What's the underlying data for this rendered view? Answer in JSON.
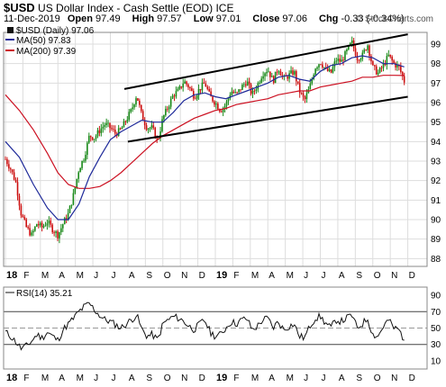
{
  "header": {
    "symbol": "$USD",
    "name": "US Dollar Index - Cash Settle (EOD)",
    "exchange": "ICE",
    "date": "11-Dec-2019",
    "open_label": "Open",
    "open": "97.49",
    "high_label": "High",
    "high": "97.57",
    "low_label": "Low",
    "low": "97.01",
    "close_label": "Close",
    "close": "97.06",
    "chg_label": "Chg",
    "chg": "-0.33 (-0.34%)",
    "copyright": "© StockCharts.com"
  },
  "legend": {
    "price": "$USD (Daily) 97.06",
    "ma50": "MA(50) 97.83",
    "ma200": "MA(200) 97.39",
    "rsi": "RSI(14) 35.21"
  },
  "colors": {
    "up": "#1a8a1a",
    "down": "#cc1111",
    "ma50": "#1f2a9a",
    "ma200": "#cc1122",
    "channel": "#000000",
    "grid": "#dddddd"
  },
  "chart_data": [
    {
      "type": "candlestick",
      "title": "$USD (Daily) 97.06",
      "ylim": [
        87.6,
        99.6
      ],
      "y_ticks": [
        88,
        89,
        90,
        91,
        92,
        93,
        94,
        95,
        96,
        97,
        98,
        99
      ],
      "x_ticks": [
        "18",
        "F",
        "M",
        "A",
        "M",
        "J",
        "J",
        "A",
        "S",
        "O",
        "N",
        "D",
        "19",
        "F",
        "M",
        "A",
        "M",
        "J",
        "J",
        "A",
        "S",
        "O",
        "N",
        "D"
      ],
      "close_path": [
        [
          0,
          93.1
        ],
        [
          0.3,
          92.6
        ],
        [
          0.6,
          91.9
        ],
        [
          0.9,
          90.3
        ],
        [
          1.2,
          89.6
        ],
        [
          1.5,
          89.2
        ],
        [
          1.8,
          89.8
        ],
        [
          2.1,
          89.6
        ],
        [
          2.4,
          89.9
        ],
        [
          2.7,
          89.5
        ],
        [
          3.0,
          89.2
        ],
        [
          3.3,
          89.8
        ],
        [
          3.6,
          90.3
        ],
        [
          3.9,
          91.3
        ],
        [
          4.2,
          92.6
        ],
        [
          4.5,
          93.2
        ],
        [
          4.8,
          94.3
        ],
        [
          5.1,
          94.2
        ],
        [
          5.4,
          94.6
        ],
        [
          5.7,
          94.9
        ],
        [
          6.0,
          94.7
        ],
        [
          6.3,
          94.4
        ],
        [
          6.6,
          94.6
        ],
        [
          6.9,
          95.1
        ],
        [
          7.2,
          95.6
        ],
        [
          7.5,
          96.4
        ],
        [
          7.8,
          95.3
        ],
        [
          8.1,
          94.7
        ],
        [
          8.4,
          94.7
        ],
        [
          8.7,
          94.0
        ],
        [
          9.0,
          95.2
        ],
        [
          9.3,
          95.8
        ],
        [
          9.6,
          96.4
        ],
        [
          9.9,
          96.6
        ],
        [
          10.2,
          97.1
        ],
        [
          10.5,
          96.8
        ],
        [
          10.8,
          96.3
        ],
        [
          11.1,
          96.7
        ],
        [
          11.4,
          97.0
        ],
        [
          11.7,
          96.3
        ],
        [
          12.0,
          96.0
        ],
        [
          12.3,
          95.6
        ],
        [
          12.6,
          95.9
        ],
        [
          12.9,
          96.6
        ],
        [
          13.2,
          96.4
        ],
        [
          13.5,
          96.8
        ],
        [
          13.8,
          97.1
        ],
        [
          14.1,
          96.4
        ],
        [
          14.4,
          96.9
        ],
        [
          14.7,
          97.5
        ],
        [
          15.0,
          97.7
        ],
        [
          15.3,
          97.1
        ],
        [
          15.6,
          97.8
        ],
        [
          15.9,
          97.2
        ],
        [
          16.2,
          97.4
        ],
        [
          16.5,
          97.6
        ],
        [
          16.8,
          96.6
        ],
        [
          17.1,
          96.1
        ],
        [
          17.4,
          96.8
        ],
        [
          17.7,
          97.8
        ],
        [
          18.0,
          98.1
        ],
        [
          18.3,
          97.7
        ],
        [
          18.6,
          97.5
        ],
        [
          18.9,
          98.2
        ],
        [
          19.2,
          98.1
        ],
        [
          19.5,
          98.6
        ],
        [
          19.8,
          99.1
        ],
        [
          20.1,
          98.3
        ],
        [
          20.4,
          98.4
        ],
        [
          20.7,
          99.0
        ],
        [
          21.0,
          97.8
        ],
        [
          21.3,
          97.5
        ],
        [
          21.6,
          97.9
        ],
        [
          21.9,
          98.4
        ],
        [
          22.2,
          98.0
        ],
        [
          22.5,
          97.8
        ],
        [
          22.8,
          97.1
        ]
      ],
      "ma50_path": [
        [
          0,
          94.0
        ],
        [
          0.8,
          93.2
        ],
        [
          1.6,
          91.8
        ],
        [
          2.4,
          90.6
        ],
        [
          3.0,
          90.0
        ],
        [
          3.6,
          90.0
        ],
        [
          4.2,
          90.8
        ],
        [
          4.8,
          92.2
        ],
        [
          5.4,
          93.2
        ],
        [
          6.0,
          94.1
        ],
        [
          6.6,
          94.5
        ],
        [
          7.2,
          94.8
        ],
        [
          7.8,
          95.1
        ],
        [
          8.4,
          95.0
        ],
        [
          9.0,
          95.0
        ],
        [
          9.6,
          95.5
        ],
        [
          10.2,
          96.1
        ],
        [
          10.8,
          96.4
        ],
        [
          11.4,
          96.5
        ],
        [
          12.0,
          96.3
        ],
        [
          12.6,
          96.2
        ],
        [
          13.2,
          96.4
        ],
        [
          13.8,
          96.6
        ],
        [
          14.4,
          96.8
        ],
        [
          15.0,
          97.0
        ],
        [
          15.6,
          97.3
        ],
        [
          16.2,
          97.4
        ],
        [
          16.8,
          97.2
        ],
        [
          17.4,
          97.1
        ],
        [
          18.0,
          97.6
        ],
        [
          18.6,
          97.9
        ],
        [
          19.2,
          98.0
        ],
        [
          19.8,
          98.3
        ],
        [
          20.4,
          98.4
        ],
        [
          21.0,
          98.3
        ],
        [
          21.6,
          98.0
        ],
        [
          22.2,
          98.0
        ],
        [
          22.8,
          97.83
        ]
      ],
      "ma200_path": [
        [
          0,
          96.4
        ],
        [
          0.8,
          95.6
        ],
        [
          1.6,
          94.6
        ],
        [
          2.4,
          93.4
        ],
        [
          3.0,
          92.4
        ],
        [
          3.6,
          91.8
        ],
        [
          4.2,
          91.6
        ],
        [
          4.8,
          91.6
        ],
        [
          5.4,
          91.7
        ],
        [
          6.0,
          92.0
        ],
        [
          6.6,
          92.4
        ],
        [
          7.2,
          92.9
        ],
        [
          7.8,
          93.4
        ],
        [
          8.4,
          93.9
        ],
        [
          9.0,
          94.3
        ],
        [
          9.6,
          94.6
        ],
        [
          10.2,
          94.9
        ],
        [
          10.8,
          95.2
        ],
        [
          11.4,
          95.4
        ],
        [
          12.0,
          95.6
        ],
        [
          12.6,
          95.7
        ],
        [
          13.2,
          95.9
        ],
        [
          13.8,
          96.0
        ],
        [
          14.4,
          96.1
        ],
        [
          15.0,
          96.2
        ],
        [
          15.6,
          96.4
        ],
        [
          16.2,
          96.5
        ],
        [
          16.8,
          96.6
        ],
        [
          17.4,
          96.6
        ],
        [
          18.0,
          96.8
        ],
        [
          18.6,
          96.9
        ],
        [
          19.2,
          97.0
        ],
        [
          19.8,
          97.1
        ],
        [
          20.4,
          97.3
        ],
        [
          21.0,
          97.3
        ],
        [
          21.6,
          97.4
        ],
        [
          22.2,
          97.4
        ],
        [
          22.8,
          97.39
        ]
      ],
      "channel_lines": [
        {
          "from": [
            6.8,
            96.7
          ],
          "to": [
            23.0,
            99.5
          ]
        },
        {
          "from": [
            7.0,
            94.0
          ],
          "to": [
            23.0,
            96.3
          ]
        }
      ]
    },
    {
      "type": "line",
      "title": "RSI(14) 35.21",
      "ylim": [
        0,
        100
      ],
      "y_ticks": [
        10,
        30,
        50,
        70,
        90
      ],
      "reference_lines": [
        30,
        50,
        70
      ],
      "x_ticks": [
        "18",
        "F",
        "M",
        "A",
        "M",
        "J",
        "J",
        "A",
        "S",
        "O",
        "N",
        "D",
        "19",
        "F",
        "M",
        "A",
        "M",
        "J",
        "J",
        "A",
        "S",
        "O",
        "N",
        "D"
      ],
      "values": [
        45,
        40,
        33,
        25,
        28,
        34,
        42,
        38,
        45,
        40,
        35,
        48,
        55,
        62,
        70,
        76,
        80,
        72,
        65,
        60,
        58,
        54,
        50,
        55,
        60,
        66,
        48,
        40,
        42,
        35,
        55,
        60,
        64,
        62,
        58,
        52,
        48,
        55,
        60,
        45,
        40,
        42,
        50,
        58,
        55,
        60,
        62,
        48,
        52,
        60,
        62,
        50,
        58,
        48,
        52,
        55,
        40,
        38,
        52,
        62,
        64,
        56,
        50,
        60,
        58,
        62,
        66,
        50,
        55,
        62,
        42,
        40,
        52,
        60,
        50,
        48,
        35.21
      ]
    }
  ]
}
